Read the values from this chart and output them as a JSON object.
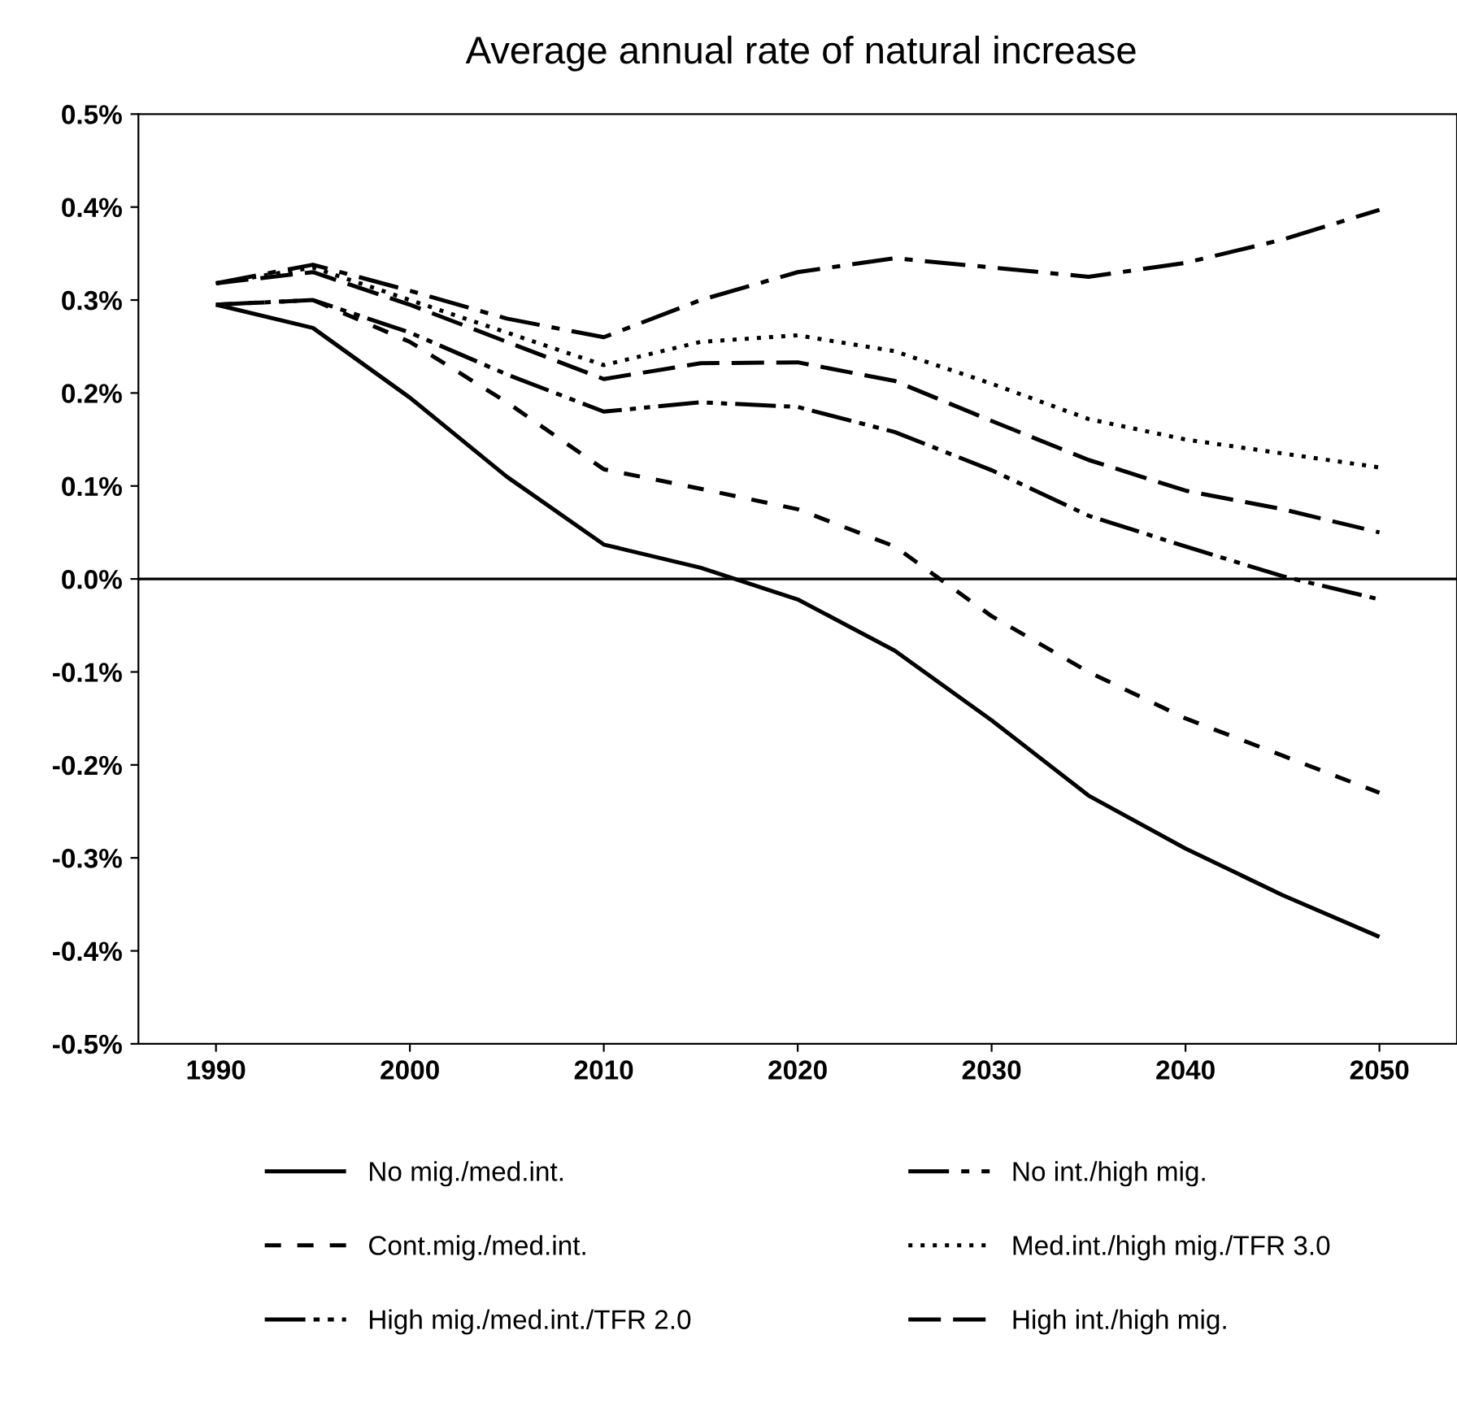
{
  "chart_data": {
    "type": "line",
    "title": "Average annual rate of natural increase",
    "x": [
      1990,
      1995,
      2000,
      2005,
      2010,
      2015,
      2020,
      2025,
      2030,
      2035,
      2040,
      2045,
      2050
    ],
    "xlim": [
      1986,
      2054
    ],
    "xticks": [
      1990,
      2000,
      2010,
      2020,
      2030,
      2040,
      2050
    ],
    "ylim": [
      -0.5,
      0.5
    ],
    "yticks": [
      {
        "value": 0.5,
        "label": "0.5%"
      },
      {
        "value": 0.4,
        "label": "0.4%"
      },
      {
        "value": 0.3,
        "label": "0.3%"
      },
      {
        "value": 0.2,
        "label": "0.2%"
      },
      {
        "value": 0.1,
        "label": "0.1%"
      },
      {
        "value": 0.0,
        "label": "0.0%"
      },
      {
        "value": -0.1,
        "label": "-0.1%"
      },
      {
        "value": -0.2,
        "label": "-0.2%"
      },
      {
        "value": -0.3,
        "label": "-0.3%"
      },
      {
        "value": -0.4,
        "label": "-0.4%"
      },
      {
        "value": -0.5,
        "label": "-0.5%"
      }
    ],
    "grid": false,
    "legend": "bottom",
    "marker": "none",
    "ref_lines": [
      {
        "axis": "y",
        "value": 0.0,
        "color": "#000000",
        "line_style": "solid"
      }
    ],
    "series": [
      {
        "name": "No mig./med.int.",
        "color": "#000000",
        "line_style": "solid",
        "values": [
          0.295,
          0.27,
          0.195,
          0.11,
          0.037,
          0.012,
          -0.022,
          -0.077,
          -0.152,
          -0.233,
          -0.29,
          -0.34,
          -0.385
        ]
      },
      {
        "name": "Cont.mig./med.int.",
        "color": "#000000",
        "line_style": "dashed",
        "values": [
          0.295,
          0.3,
          0.255,
          0.19,
          0.118,
          0.097,
          0.075,
          0.035,
          -0.04,
          -0.1,
          -0.15,
          -0.19,
          -0.23
        ]
      },
      {
        "name": "High mig./med.int./TFR 2.0",
        "color": "#000000",
        "line_style": "dashdotdot",
        "values": [
          0.295,
          0.3,
          0.265,
          0.22,
          0.18,
          0.19,
          0.185,
          0.158,
          0.117,
          0.068,
          0.035,
          0.003,
          -0.022
        ]
      },
      {
        "name": "No int./high mig.",
        "color": "#000000",
        "line_style": "dashdot",
        "values": [
          0.318,
          0.338,
          0.31,
          0.28,
          0.26,
          0.3,
          0.33,
          0.345,
          0.335,
          0.325,
          0.34,
          0.365,
          0.397
        ]
      },
      {
        "name": "Med.int./high mig./TFR 3.0",
        "color": "#000000",
        "line_style": "dotted",
        "values": [
          0.318,
          0.335,
          0.3,
          0.265,
          0.23,
          0.255,
          0.262,
          0.245,
          0.21,
          0.172,
          0.15,
          0.135,
          0.12
        ]
      },
      {
        "name": "High int./high mig.",
        "color": "#000000",
        "line_style": "longdash",
        "values": [
          0.318,
          0.33,
          0.295,
          0.255,
          0.215,
          0.232,
          0.233,
          0.213,
          0.17,
          0.128,
          0.095,
          0.075,
          0.05
        ]
      }
    ]
  }
}
